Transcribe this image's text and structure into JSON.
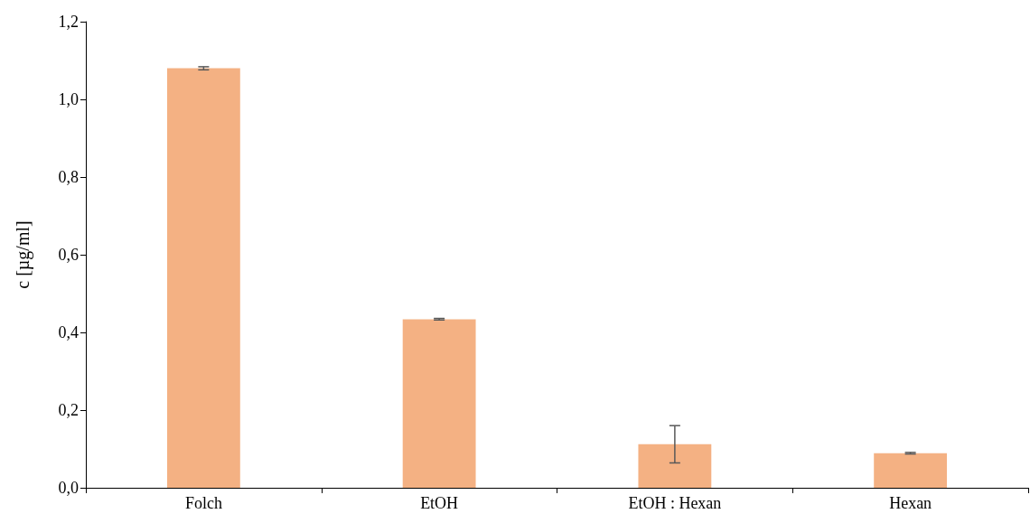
{
  "chart_data": {
    "type": "bar",
    "ylabel": "c [µg/ml]",
    "categories": [
      "Folch",
      "EtOH",
      "EtOH : Hexan",
      "Hexan"
    ],
    "values": [
      1.08,
      0.434,
      0.112,
      0.089
    ],
    "errors": [
      0.004,
      0.002,
      0.048,
      0.002
    ],
    "color": "#f4b183",
    "ylim": [
      0,
      1.2
    ],
    "yticks": [
      {
        "value": 0,
        "label": "0,0"
      },
      {
        "value": 0.2,
        "label": "0,2"
      },
      {
        "value": 0.4,
        "label": "0,4"
      },
      {
        "value": 0.6,
        "label": "0,6"
      },
      {
        "value": 0.8,
        "label": "0,8"
      },
      {
        "value": 1.0,
        "label": "1,0"
      },
      {
        "value": 1.2,
        "label": "1,2"
      }
    ],
    "grid": false
  }
}
